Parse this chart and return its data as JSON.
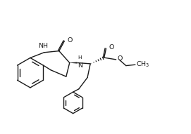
{
  "bg_color": "#ffffff",
  "line_color": "#1a1a1a",
  "line_width": 1.0,
  "font_size": 6.8,
  "figsize": [
    2.71,
    1.91
  ],
  "dpi": 100,
  "xlim": [
    0.3,
    10.2
  ],
  "ylim": [
    1.0,
    7.0
  ]
}
